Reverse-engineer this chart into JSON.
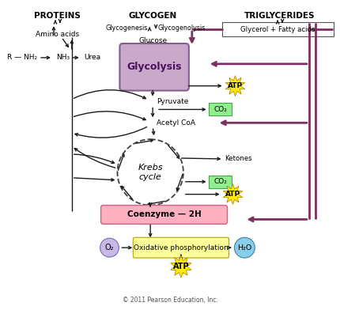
{
  "bg_color": "#ffffff",
  "fig_width": 4.3,
  "fig_height": 3.92,
  "dpi": 100,
  "title_copyright": "© 2011 Pearson Education, Inc.",
  "proteins_label": "PROTEINS",
  "glycogen_label": "GLYCOGEN",
  "triglycerides_label": "TRIGLYCERIDES",
  "amino_acids_label": "Amino acids",
  "glycogenesis_label": "Glycogenesis",
  "glycogenolysis_label": "Glycogenolysis",
  "glucose_label": "Glucose",
  "glycerol_label": "Glycerol + Fatty acids",
  "rnh2_label": "R — NH₂",
  "nh3_label": "NH₃",
  "urea_label": "Urea",
  "glycolysis_label": "Glycolysis",
  "pyruvate_label": "Pyruvate",
  "acetylcoa_label": "Acetyl CoA",
  "ketones_label": "Ketones",
  "krebs_label": "Krebs\ncycle",
  "coenzyme_label": "Coenzyme — 2H",
  "o2_label": "O₂",
  "oxphos_label": "Oxidative phosphorylation",
  "h2o_label": "H₂O",
  "atp_label": "ATP",
  "co2_label": "CO₂",
  "glycolysis_color": "#c9a8c9",
  "glycolysis_edge": "#9060a0",
  "coenzyme_color": "#ffb0c0",
  "oxphos_color": "#ffff99",
  "atp_star_color": "#ffee00",
  "co2_color": "#90ee90",
  "o2_color": "#c8b8e8",
  "h2o_color": "#87ceeb",
  "pink_line_color": "#7a3060",
  "black_arrow_color": "#1a1a1a"
}
